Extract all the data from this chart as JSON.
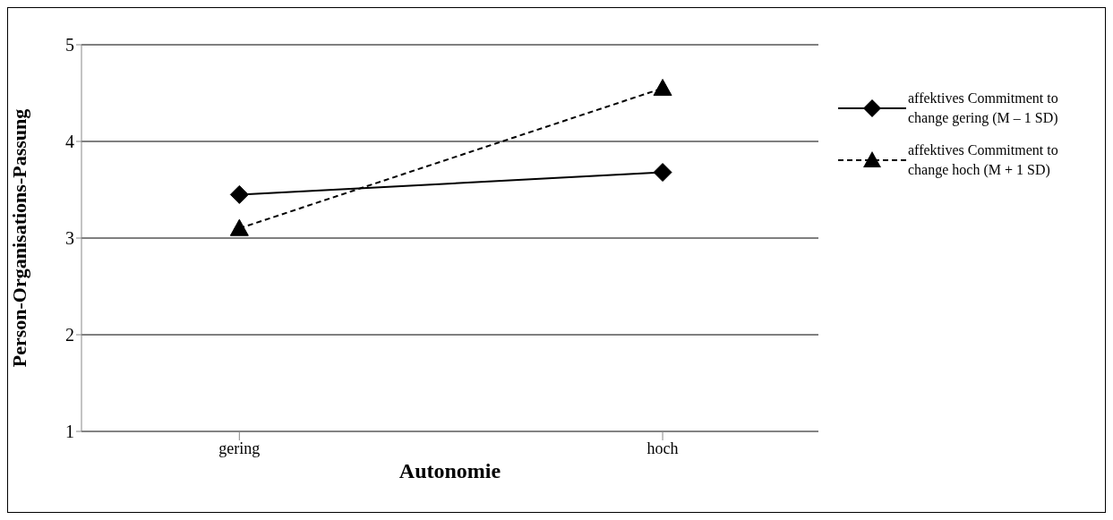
{
  "chart_data": {
    "type": "line",
    "xlabel": "Autonomie",
    "ylabel": "Person-Organisations-Passung",
    "categories": [
      "gering",
      "hoch"
    ],
    "series": [
      {
        "name": "affektives Commitment to change gering (M – 1 SD)",
        "color": "#000000",
        "values": [
          3.45,
          3.68
        ],
        "marker": "diamond",
        "line_style": "solid"
      },
      {
        "name": "affektives Commitment to change hoch (M + 1 SD)",
        "color": "#000000",
        "values": [
          3.1,
          4.55
        ],
        "marker": "triangle",
        "line_style": "dashed"
      }
    ],
    "ylim": [
      1,
      5
    ],
    "yticks": [
      1,
      2,
      3,
      4,
      5
    ],
    "grid": "y",
    "legend": "right"
  }
}
